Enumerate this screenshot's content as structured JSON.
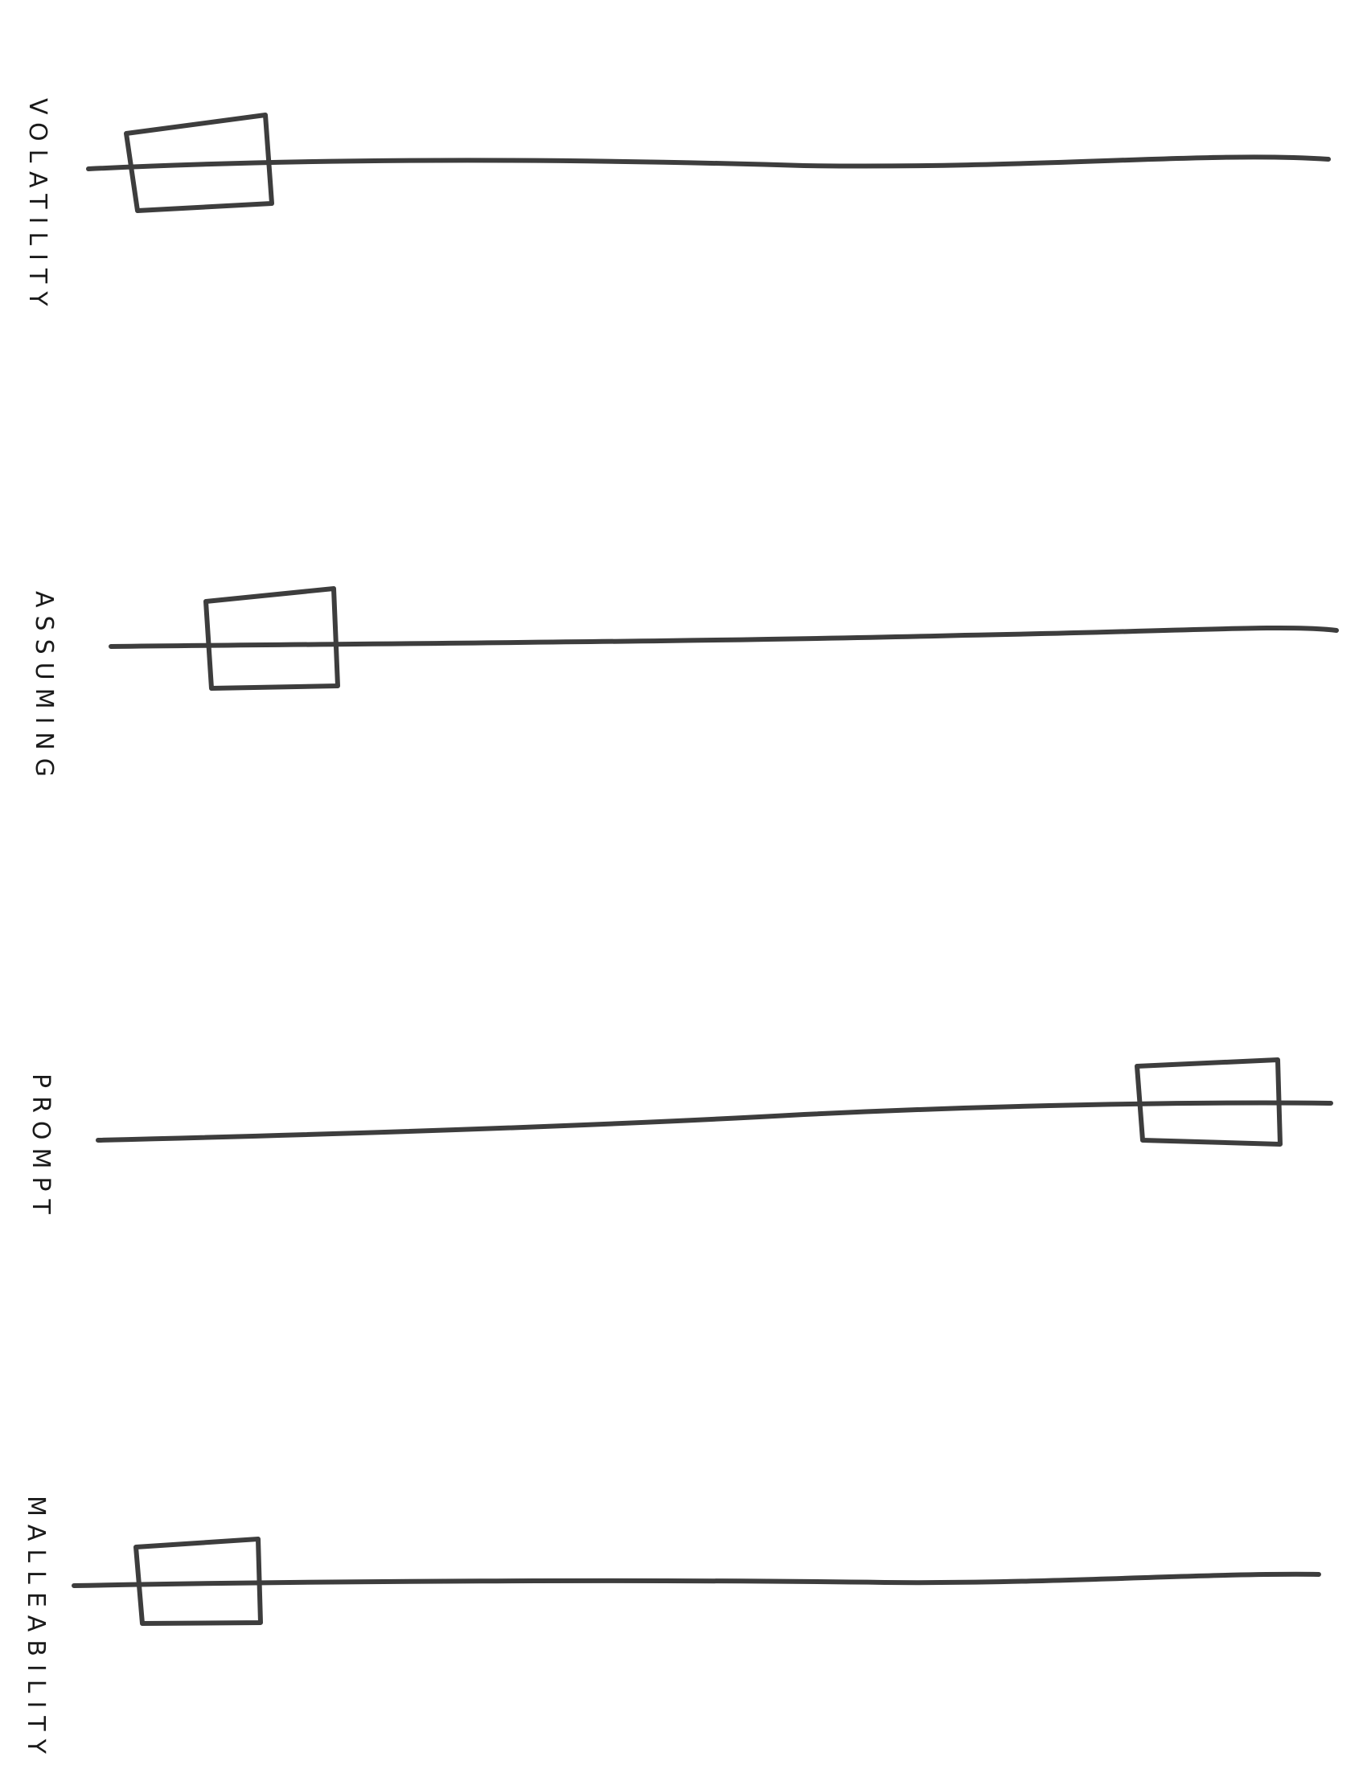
{
  "scales": [
    {
      "label": "VOLATILITY",
      "marker_position": 0.09
    },
    {
      "label": "ASSUMING",
      "marker_position": 0.15
    },
    {
      "label": "PROMPT",
      "marker_position": 0.96
    },
    {
      "label": "MALLEABILITY",
      "marker_position": 0.1
    }
  ],
  "colors": {
    "ink": "#3d3d3d",
    "label": "#1a1a1a",
    "background": "#ffffff"
  }
}
